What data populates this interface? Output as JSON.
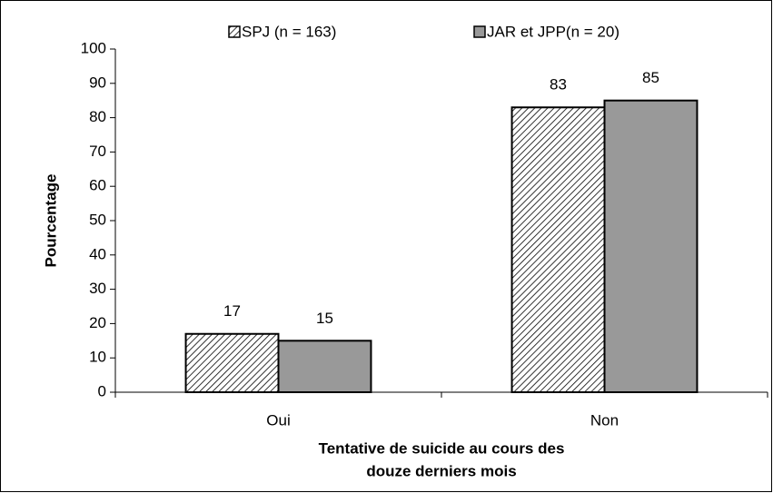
{
  "chart_data": {
    "type": "bar",
    "categories": [
      "Oui",
      "Non"
    ],
    "series": [
      {
        "name": "SPJ (n = 163)",
        "color": "#ffffff",
        "pattern": "diagonal-hatch",
        "values": [
          17,
          83
        ]
      },
      {
        "name": "JAR et JPP(n = 20)",
        "color": "#999999",
        "values": [
          15,
          85
        ]
      }
    ],
    "y_label": "Pourcentage",
    "x_label": [
      "Tentative de suicide au cours des",
      "douze derniers mois"
    ],
    "ylim": [
      0,
      100
    ],
    "yticks": [
      0,
      10,
      20,
      30,
      40,
      50,
      60,
      70,
      80,
      90,
      100
    ],
    "legend": "top",
    "grid": false
  }
}
